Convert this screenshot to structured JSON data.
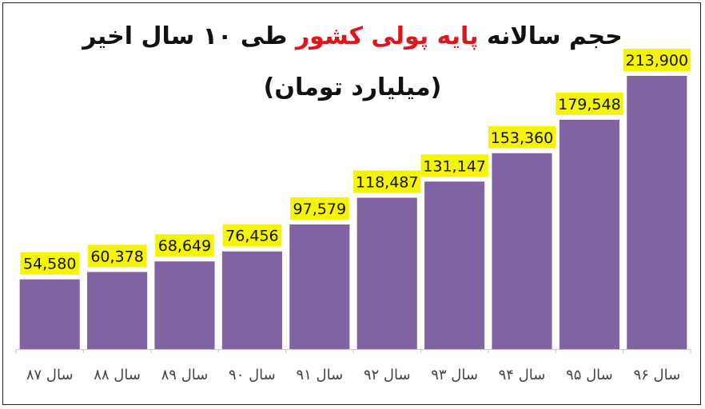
{
  "colors": {
    "bar": "#8064a2",
    "label_bg": "#f5f500",
    "title": "#111111",
    "title_highlight": "#e0141b",
    "axis": "#c8c8c8",
    "tick_text": "#444444"
  },
  "chart_data": {
    "type": "bar",
    "title_parts": {
      "before": "حجم سالانه",
      "highlight": "پایه پولی کشور",
      "after": "طی ۱۰ سال اخیر"
    },
    "subtitle": "(میلیارد تومان)",
    "categories": [
      "سال ۸۷",
      "سال ۸۸",
      "سال ۸۹",
      "سال ۹۰",
      "سال ۹۱",
      "سال ۹۲",
      "سال ۹۳",
      "سال ۹۴",
      "سال ۹۵",
      "سال ۹۶"
    ],
    "values": [
      54580,
      60378,
      68649,
      76456,
      97579,
      118487,
      131147,
      153360,
      179548,
      213900
    ],
    "value_labels": [
      "54,580",
      "60,378",
      "68,649",
      "76,456",
      "97,579",
      "118,487",
      "131,147",
      "153,360",
      "179,548",
      "213,900"
    ],
    "ylim": [
      0,
      217000
    ],
    "grid": false,
    "legend": "none",
    "data_labels": "above-bars"
  }
}
